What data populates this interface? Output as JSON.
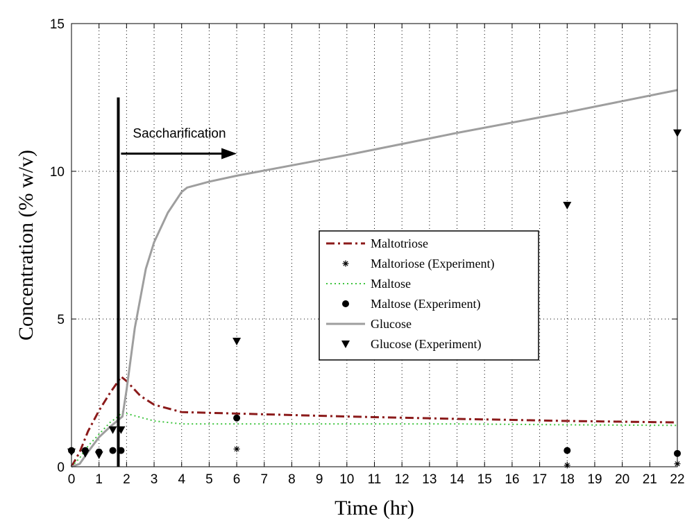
{
  "chart_data": {
    "type": "line",
    "xlabel": "Time (hr)",
    "ylabel": "Concentration (% w/v)",
    "xlim": [
      0,
      22
    ],
    "ylim": [
      0,
      15
    ],
    "xticks": [
      0,
      1,
      2,
      3,
      4,
      5,
      6,
      7,
      8,
      9,
      10,
      11,
      12,
      13,
      14,
      15,
      16,
      17,
      18,
      19,
      20,
      21,
      22
    ],
    "yticks": [
      0,
      5,
      10,
      15
    ],
    "grid": true,
    "legend_placement": "center-right",
    "annotation": {
      "text": "Saccharification",
      "vline_x": 1.7,
      "vline_y": [
        0,
        12.5
      ],
      "arrow": {
        "x0": 1.8,
        "x1": 6.0,
        "y": 10.6
      }
    },
    "series": [
      {
        "name": "Maltotriose",
        "kind": "line",
        "style": "dashdot",
        "color": "#8b1a1a",
        "x": [
          0,
          0.3,
          0.6,
          1.0,
          1.4,
          1.7,
          1.8,
          2.0,
          2.5,
          3.0,
          4.0,
          6.0,
          10.0,
          14.0,
          18.0,
          22.0
        ],
        "y": [
          0,
          0.5,
          1.2,
          1.9,
          2.5,
          2.9,
          3.05,
          2.9,
          2.4,
          2.1,
          1.85,
          1.8,
          1.7,
          1.62,
          1.55,
          1.5
        ]
      },
      {
        "name": "Maltoriose (Experiment)",
        "kind": "marker",
        "marker": "star",
        "color": "#000000",
        "x": [
          6,
          18,
          22
        ],
        "y": [
          0.6,
          0.05,
          0.1
        ]
      },
      {
        "name": "Maltose",
        "kind": "line",
        "style": "dotted",
        "color": "#3cc43c",
        "x": [
          0,
          0.3,
          0.6,
          1.0,
          1.4,
          1.7,
          1.85,
          2.0,
          3.0,
          4.0,
          6.0,
          10.0,
          14.0,
          18.0,
          22.0
        ],
        "y": [
          0,
          0.3,
          0.7,
          1.1,
          1.5,
          1.7,
          1.85,
          1.8,
          1.55,
          1.45,
          1.45,
          1.45,
          1.45,
          1.42,
          1.4
        ]
      },
      {
        "name": "Maltose (Experiment)",
        "kind": "marker",
        "marker": "circle",
        "color": "#000000",
        "x": [
          0,
          0.5,
          1.0,
          1.5,
          1.8,
          6,
          18,
          22
        ],
        "y": [
          0.55,
          0.55,
          0.5,
          0.55,
          0.55,
          1.65,
          0.55,
          0.45
        ]
      },
      {
        "name": "Glucose",
        "kind": "line",
        "style": "solid",
        "color": "#9e9e9e",
        "x": [
          0,
          0.3,
          0.6,
          1.0,
          1.4,
          1.85,
          2.0,
          2.3,
          2.7,
          3.0,
          3.5,
          4.0,
          4.2,
          5.0,
          6.0,
          10.0,
          14.0,
          18.0,
          22.0
        ],
        "y": [
          0,
          0.1,
          0.5,
          1.0,
          1.35,
          1.7,
          2.6,
          4.7,
          6.7,
          7.6,
          8.6,
          9.3,
          9.45,
          9.65,
          9.85,
          10.55,
          11.3,
          12.0,
          12.75
        ]
      },
      {
        "name": "Glucose (Experiment)",
        "kind": "marker",
        "marker": "triangle-down",
        "color": "#000000",
        "x": [
          0,
          0.5,
          1.0,
          1.5,
          1.8,
          6,
          18,
          22
        ],
        "y": [
          0.5,
          0.45,
          0.4,
          1.25,
          1.25,
          4.25,
          8.85,
          11.3
        ]
      }
    ]
  }
}
